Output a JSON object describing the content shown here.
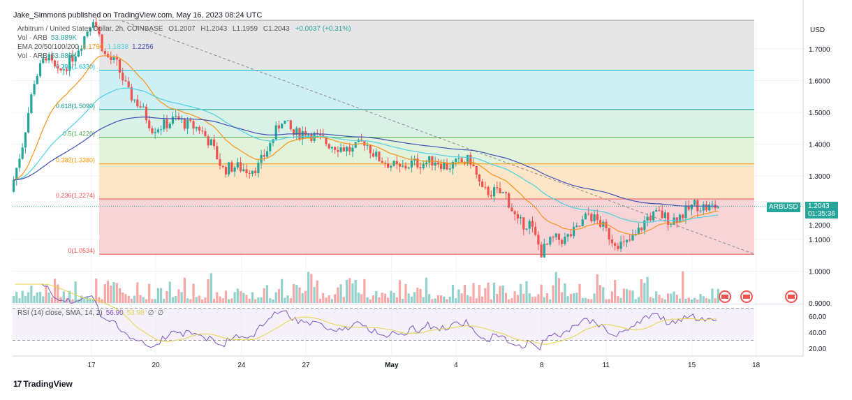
{
  "header": {
    "published": "Jake_Simmons published on TradingView.com, May 16, 2023 08:24 UTC"
  },
  "legend": {
    "symbol": "Arbitrum / United States Dollar, 2h, COINBASE",
    "o": "O1.2007",
    "h": "H1.2043",
    "l": "L1.1959",
    "c": "C1.2043",
    "change": "+0.0037 (+0.31%)",
    "vol_label": "Vol · ARB",
    "vol_value": "53.889K",
    "ema_label": "EMA 20/50/100/200",
    "ema20": "1.1796",
    "ema50": "1.1838",
    "ema100": "1.2256",
    "vol2_label": "Vol · ARB",
    "vol2_value": "53.889K"
  },
  "price_tag": {
    "symbol": "ARBUSD",
    "price": "1.2043",
    "countdown": "01:35:36"
  },
  "rsi_legend": {
    "label": "RSI (14) close, SMA, 14, 2)",
    "value": "56.90",
    "sma": "53.98",
    "na1": "∅",
    "na2": "∅"
  },
  "footer": {
    "logo": "TradingView"
  },
  "colors": {
    "up": "#26a69a",
    "down": "#ef5350",
    "ema20": "#f7931a",
    "ema50": "#4dd0e1",
    "ema200": "#3f51b5",
    "rsi": "#7e57c2"
  },
  "chart_data": {
    "type": "candlestick",
    "currency_label": "USD",
    "ylim": [
      0.87,
      1.79
    ],
    "yticks": [
      "1.7000",
      "1.6000",
      "1.5000",
      "1.4000",
      "1.3000",
      "1.2000",
      "1.1000",
      "1.0000",
      "0.9000"
    ],
    "ytick_values": [
      1.7,
      1.6,
      1.5,
      1.4,
      1.3,
      1.2,
      1.1,
      1.0,
      0.9
    ],
    "xticks": [
      "17",
      "20",
      "24",
      "27",
      "May",
      "4",
      "8",
      "11",
      "15",
      "18"
    ],
    "xtick_days": [
      17,
      20,
      24,
      27,
      31,
      34,
      38,
      41,
      45,
      48
    ],
    "start_day": 13.3,
    "end_day": 46.3,
    "closes": [
      1.25,
      1.4,
      1.6,
      1.68,
      1.62,
      1.66,
      1.72,
      1.8,
      1.68,
      1.65,
      1.56,
      1.52,
      1.45,
      1.46,
      1.48,
      1.46,
      1.45,
      1.4,
      1.32,
      1.33,
      1.32,
      1.33,
      1.4,
      1.48,
      1.43,
      1.44,
      1.42,
      1.4,
      1.39,
      1.38,
      1.41,
      1.36,
      1.34,
      1.32,
      1.34,
      1.34,
      1.35,
      1.33,
      1.34,
      1.35,
      1.25,
      1.25,
      1.24,
      1.15,
      1.15,
      1.06,
      1.1,
      1.1,
      1.13,
      1.18,
      1.15,
      1.1,
      1.08,
      1.11,
      1.17,
      1.18,
      1.16,
      1.18,
      1.21,
      1.2,
      1.2043
    ],
    "fib_levels": [
      {
        "ratio": "0",
        "price": 1.0534,
        "label": "0(1.0534)",
        "color": "#ef5350"
      },
      {
        "ratio": "0.236",
        "price": 1.2274,
        "label": "0.236(1.2274)",
        "color": "#ef5350"
      },
      {
        "ratio": "0.382",
        "price": 1.338,
        "label": "0.382(1.3380)",
        "color": "#ff9800"
      },
      {
        "ratio": "0.5",
        "price": 1.422,
        "label": "0.5(1.4220)",
        "color": "#4caf50"
      },
      {
        "ratio": "0.618",
        "price": 1.509,
        "label": "0.618(1.5090)",
        "color": "#089981"
      },
      {
        "ratio": "0.786",
        "price": 1.633,
        "label": "0.786(1.6330)",
        "color": "#00bcd4"
      },
      {
        "ratio": "1",
        "price": 1.79,
        "label": "",
        "color": "#9e9e9e"
      }
    ],
    "rsi_ticks": [
      "60.00",
      "40.00",
      "20.00"
    ],
    "rsi_tick_values": [
      60,
      40,
      20
    ]
  }
}
